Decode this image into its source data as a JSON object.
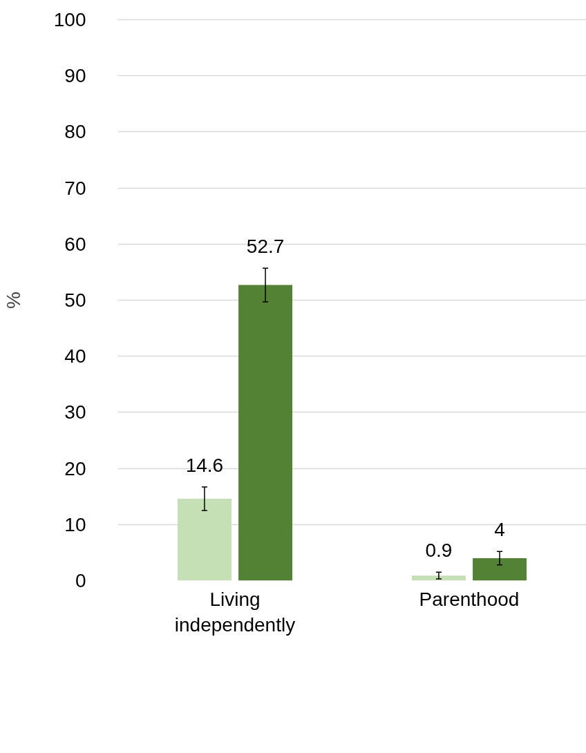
{
  "chart_data": {
    "type": "bar",
    "ylabel": "%",
    "categories": [
      "Living independently",
      "Parenthood"
    ],
    "series": [
      {
        "color": "#c5e0b4",
        "values": [
          14.6,
          0.9
        ],
        "errors": [
          2.1,
          0.6
        ]
      },
      {
        "color": "#548235",
        "values": [
          52.7,
          4
        ],
        "errors": [
          3.0,
          1.2
        ]
      }
    ],
    "ylim": [
      0,
      100
    ],
    "yticks": [
      0,
      10,
      20,
      30,
      40,
      50,
      60,
      70,
      80,
      90,
      100
    ],
    "grid": "y",
    "data_labels": true
  }
}
